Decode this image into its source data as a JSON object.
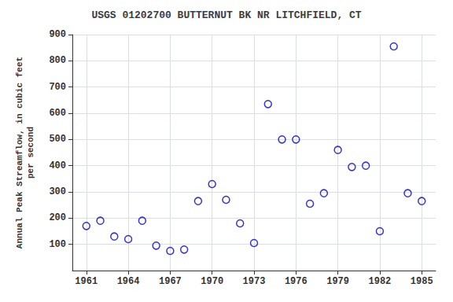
{
  "chart_data": {
    "type": "scatter",
    "title": "USGS 01202700 BUTTERNUT BK NR LITCHFIELD, CT",
    "ylabel": "Annual Peak Streamflow, in cubic feet\nper second",
    "x": [
      1961,
      1962,
      1963,
      1964,
      1965,
      1966,
      1967,
      1968,
      1969,
      1970,
      1971,
      1972,
      1973,
      1974,
      1975,
      1976,
      1977,
      1978,
      1979,
      1980,
      1981,
      1982,
      1983,
      1984,
      1985
    ],
    "values": [
      170,
      190,
      130,
      120,
      190,
      95,
      75,
      80,
      265,
      330,
      270,
      180,
      105,
      635,
      500,
      500,
      255,
      295,
      460,
      395,
      400,
      150,
      855,
      295,
      265
    ],
    "color": "#0000CC",
    "marker": "circle",
    "xlim": [
      1960,
      1986
    ],
    "xticks": [
      1961,
      1964,
      1967,
      1970,
      1973,
      1976,
      1979,
      1982,
      1985
    ],
    "ylim": [
      0,
      900
    ],
    "yticks": [
      100,
      200,
      300,
      400,
      500,
      600,
      700,
      800,
      900
    ],
    "grid": true
  }
}
